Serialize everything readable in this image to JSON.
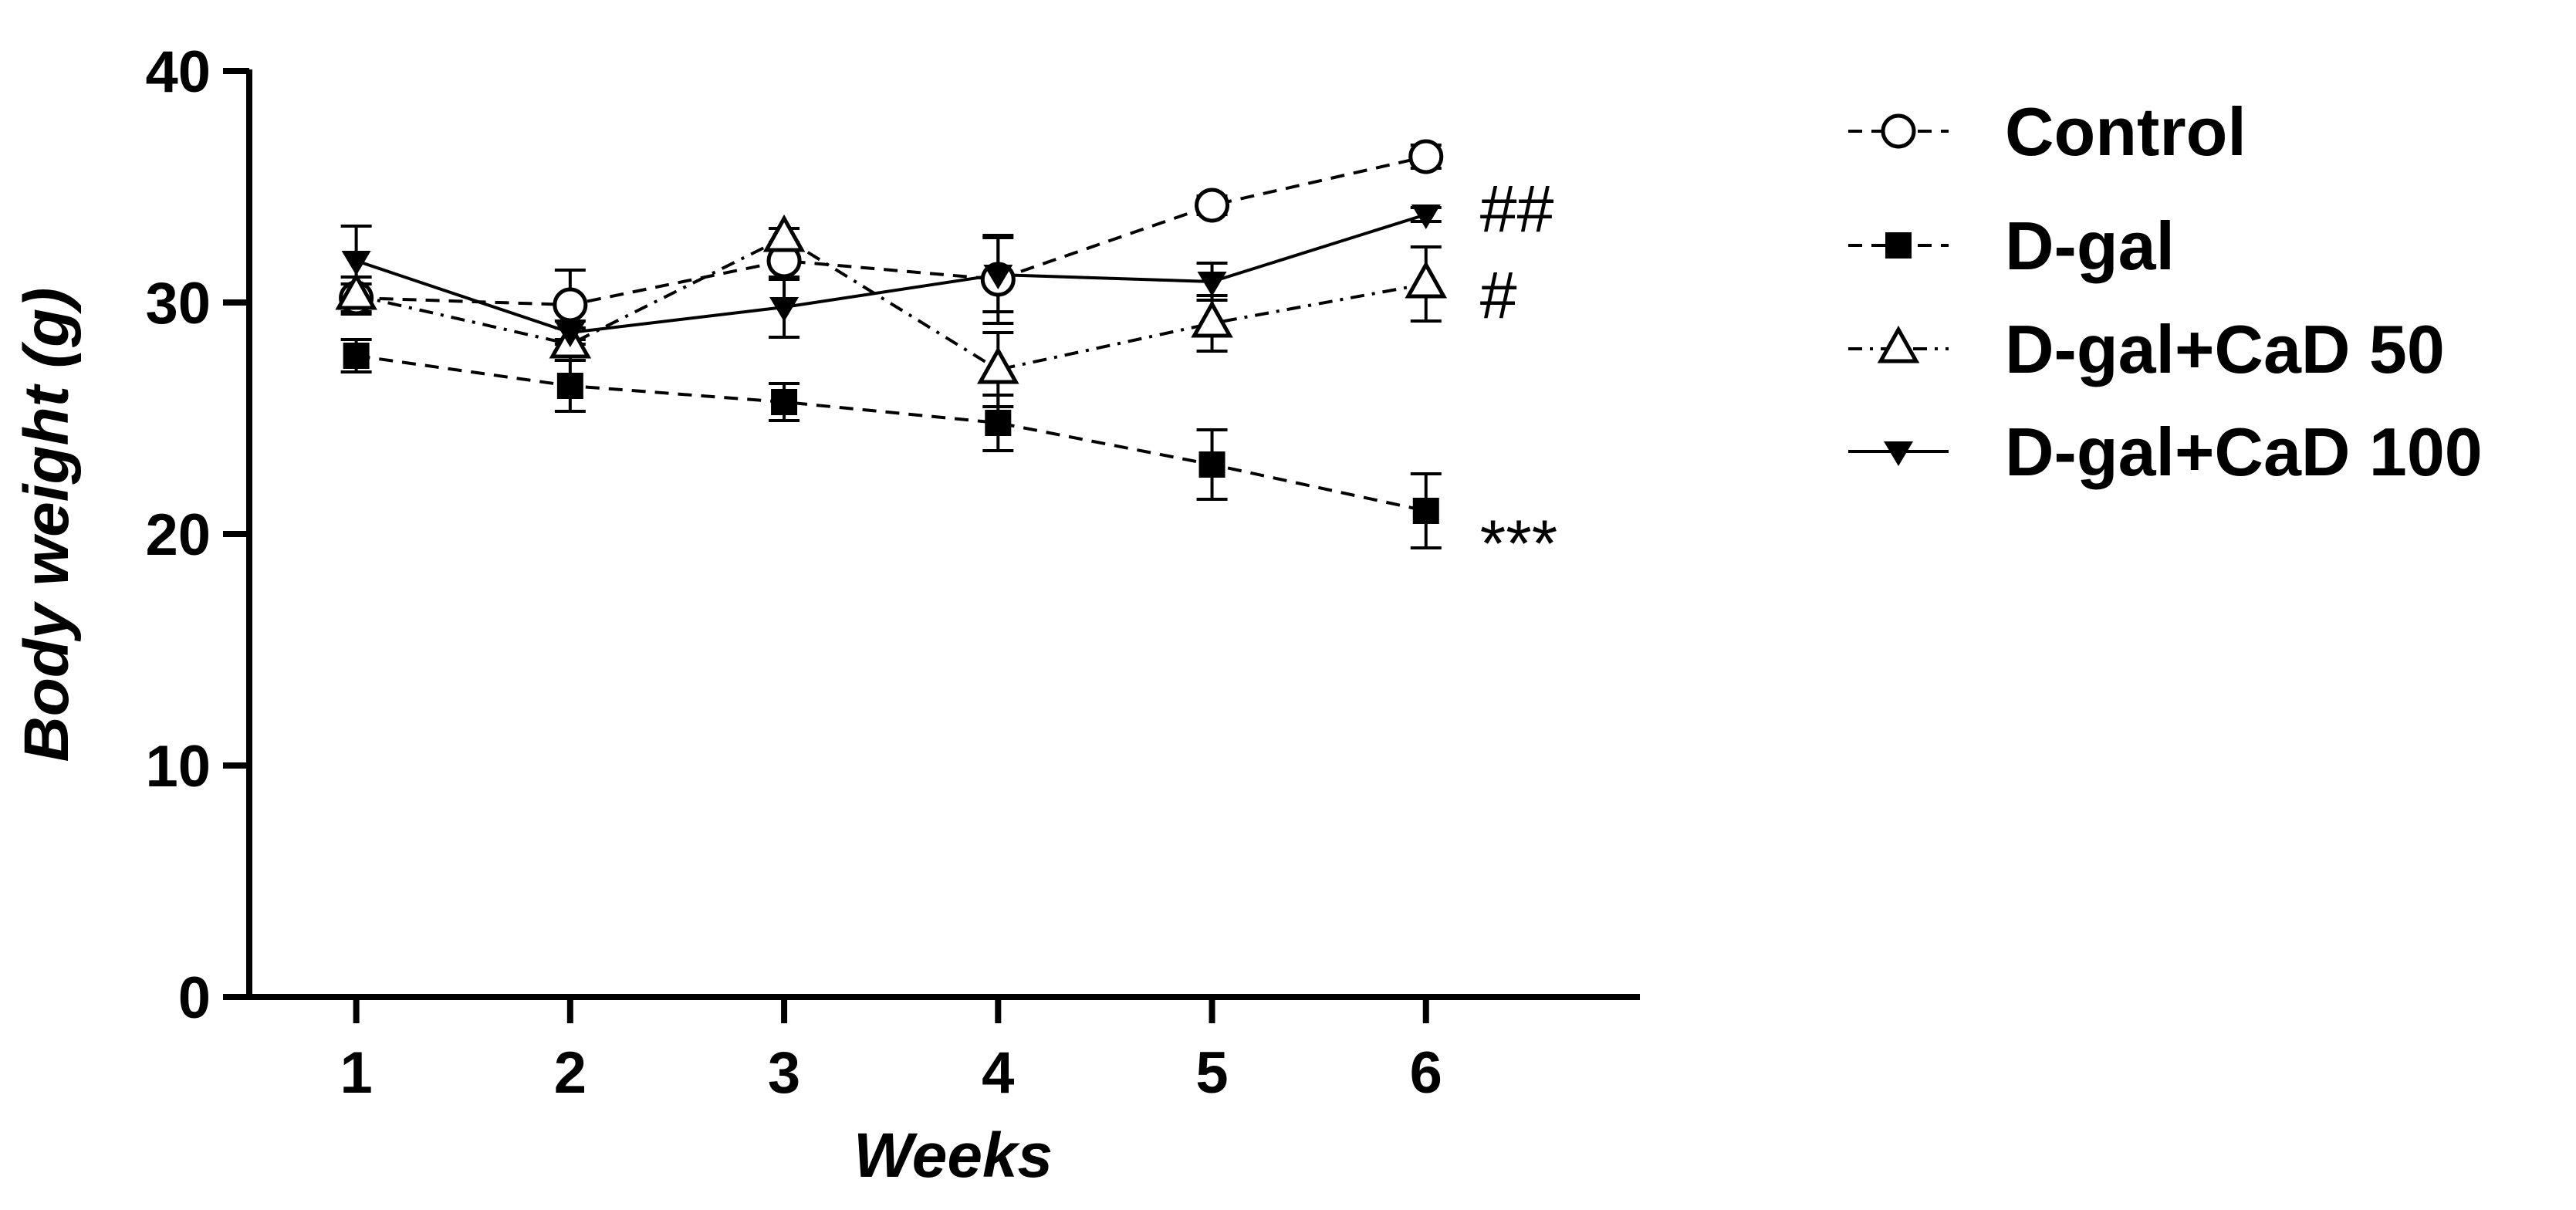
{
  "chart_data": {
    "type": "line",
    "title": "",
    "xlabel": "Weeks",
    "ylabel": "Body weight (g)",
    "x": [
      1,
      2,
      3,
      4,
      5,
      6
    ],
    "xlim": [
      0.5,
      7.0
    ],
    "ylim": [
      0,
      40
    ],
    "yticks": [
      0,
      10,
      20,
      30,
      40
    ],
    "xticks": [
      1,
      2,
      3,
      4,
      5,
      6
    ],
    "grid": false,
    "legend_position": "right",
    "series": [
      {
        "name": "Control",
        "marker": "open-circle",
        "line": "dashed",
        "values": [
          30.2,
          29.9,
          31.8,
          31.0,
          34.2,
          36.3
        ],
        "errors": [
          0.6,
          1.5,
          0.8,
          1.9,
          0.4,
          0.5
        ]
      },
      {
        "name": "D-gal",
        "marker": "filled-square",
        "line": "dashed",
        "values": [
          27.7,
          26.4,
          25.7,
          24.8,
          23.0,
          21.0
        ],
        "errors": [
          0.7,
          1.1,
          0.8,
          1.2,
          1.5,
          1.6
        ]
      },
      {
        "name": "D-gal+CaD 50",
        "marker": "open-triangle",
        "line": "dash-dot",
        "values": [
          30.3,
          28.2,
          32.8,
          27.1,
          29.1,
          30.8
        ],
        "errors": [
          0.8,
          0.7,
          0.4,
          1.6,
          1.2,
          1.6
        ]
      },
      {
        "name": "D-gal+CaD 100",
        "marker": "filled-triangle-down",
        "line": "solid",
        "values": [
          31.8,
          28.7,
          29.8,
          31.2,
          30.9,
          33.8
        ],
        "errors": [
          1.5,
          0.5,
          1.3,
          1.6,
          0.8,
          0.3
        ]
      }
    ],
    "annotations": [
      {
        "text": "##",
        "series": "D-gal+CaD 100",
        "x": 6
      },
      {
        "text": "#",
        "series": "D-gal+CaD 50",
        "x": 6
      },
      {
        "text": "***",
        "series": "D-gal",
        "x": 6
      }
    ]
  }
}
